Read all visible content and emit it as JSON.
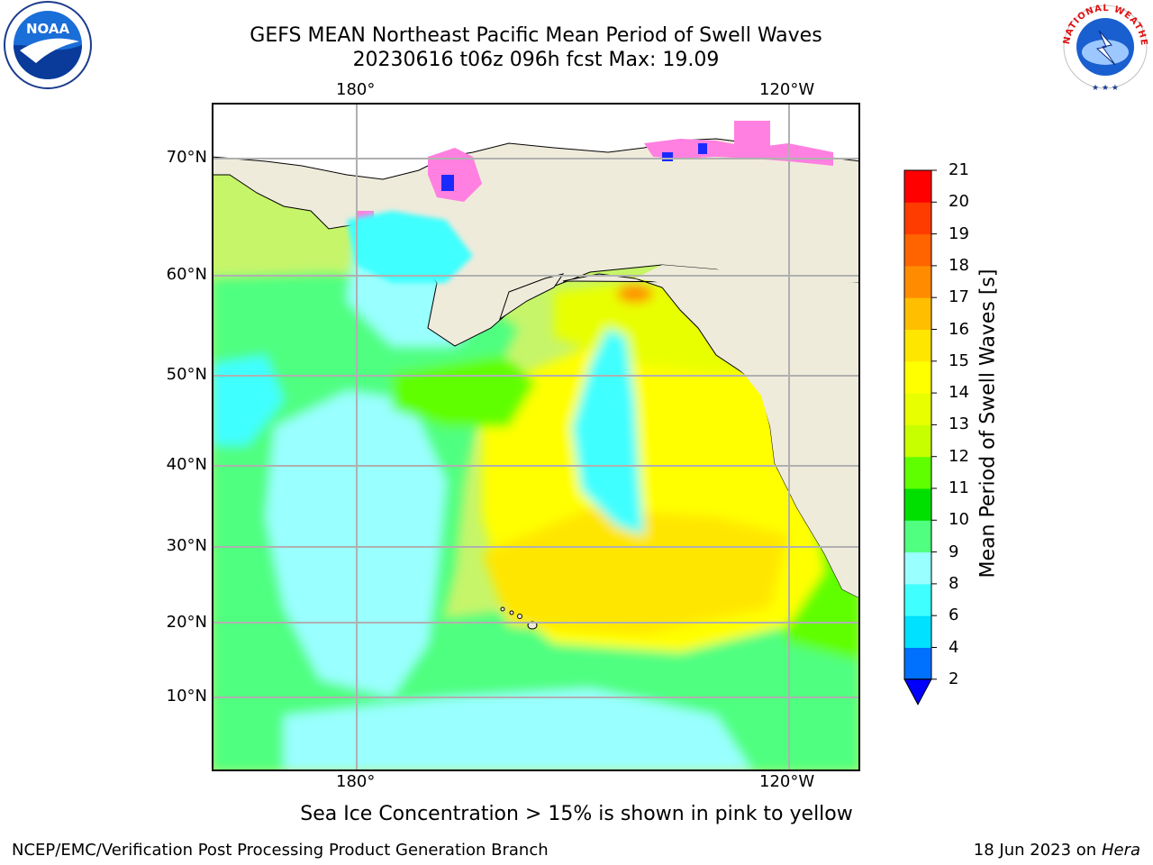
{
  "title_line1": "GEFS MEAN Northeast Pacific Mean Period of Swell Waves",
  "title_line2": "20230616 t06z 096h fcst   Max: 19.09",
  "map": {
    "lon_labels_top": [
      "180°",
      "120°W"
    ],
    "lon_labels_bottom": [
      "180°",
      "120°W"
    ],
    "lat_labels": [
      "70°N",
      "60°N",
      "50°N",
      "40°N",
      "30°N",
      "20°N",
      "10°N"
    ]
  },
  "colorbar": {
    "title": "Mean Period of Swell Waves [s]",
    "ticks": [
      "21",
      "20",
      "19",
      "18",
      "17",
      "16",
      "15",
      "14",
      "13",
      "12",
      "11",
      "10",
      "9",
      "8",
      "6",
      "4",
      "2"
    ],
    "colors_bottom_to_top": [
      "#0070ff",
      "#00e0ff",
      "#40ffff",
      "#9affff",
      "#50ff80",
      "#00e000",
      "#60ff00",
      "#c8ff00",
      "#e8ff00",
      "#ffff00",
      "#ffe600",
      "#ffbe00",
      "#ff8c00",
      "#ff6400",
      "#ff3c00",
      "#ff0000"
    ],
    "under_color": "#0000ff"
  },
  "map_colors": {
    "land": "#efebdb",
    "ocean_base": "#c6f56a",
    "grid": "#b0b0b0",
    "sea_ice": "#ff80e0"
  },
  "footer_note": "Sea Ice Concentration > 15% is shown in pink to yellow",
  "footer_left": "NCEP/EMC/Verification Post Processing Product Generation Branch",
  "footer_right_date": "18 Jun 2023 on",
  "footer_right_host": "Hera",
  "logos": {
    "noaa_text": "NOAA",
    "nws_text": "NATIONAL WEATHER SERVICE"
  }
}
